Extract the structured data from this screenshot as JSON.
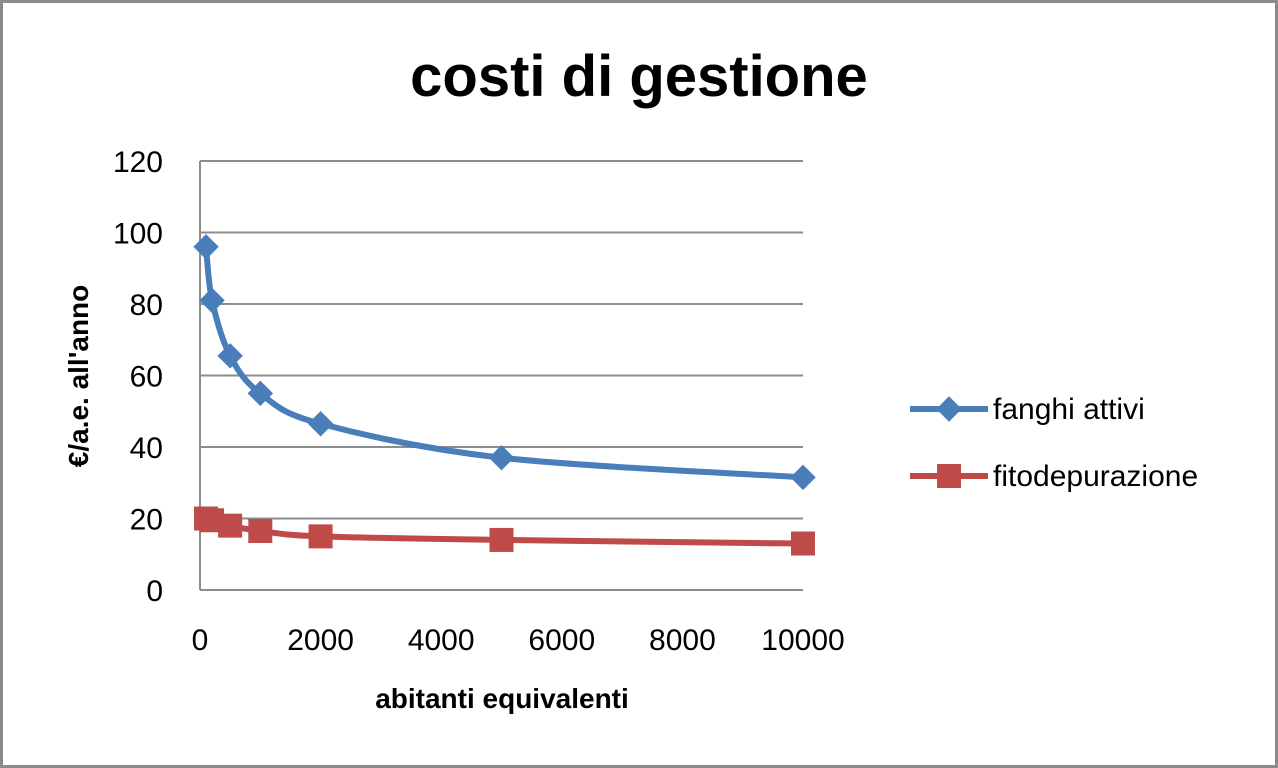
{
  "chart_data": {
    "type": "line",
    "title": "costi di gestione",
    "xlabel": "abitanti equivalenti",
    "ylabel": "€/a.e. all'anno",
    "xlim": [
      0,
      10000
    ],
    "ylim": [
      0,
      120
    ],
    "x_ticks": [
      "0",
      "2000",
      "4000",
      "6000",
      "8000",
      "10000"
    ],
    "y_ticks": [
      "0",
      "20",
      "40",
      "60",
      "80",
      "100",
      "120"
    ],
    "grid": "horizontal",
    "legend_position": "right",
    "smooth": true,
    "series": [
      {
        "name": "fanghi attivi",
        "color": "#4a7ebb",
        "marker": "diamond",
        "points": [
          {
            "x": 100,
            "y": 96
          },
          {
            "x": 200,
            "y": 81
          },
          {
            "x": 500,
            "y": 65.5
          },
          {
            "x": 1000,
            "y": 55
          },
          {
            "x": 2000,
            "y": 46.5
          },
          {
            "x": 5000,
            "y": 37
          },
          {
            "x": 10000,
            "y": 31.5
          }
        ]
      },
      {
        "name": "fitodepurazione",
        "color": "#be4b48",
        "marker": "square",
        "points": [
          {
            "x": 100,
            "y": 20
          },
          {
            "x": 200,
            "y": 19.5
          },
          {
            "x": 500,
            "y": 18
          },
          {
            "x": 1000,
            "y": 16.5
          },
          {
            "x": 2000,
            "y": 15
          },
          {
            "x": 5000,
            "y": 14
          },
          {
            "x": 10000,
            "y": 13
          }
        ]
      }
    ]
  }
}
